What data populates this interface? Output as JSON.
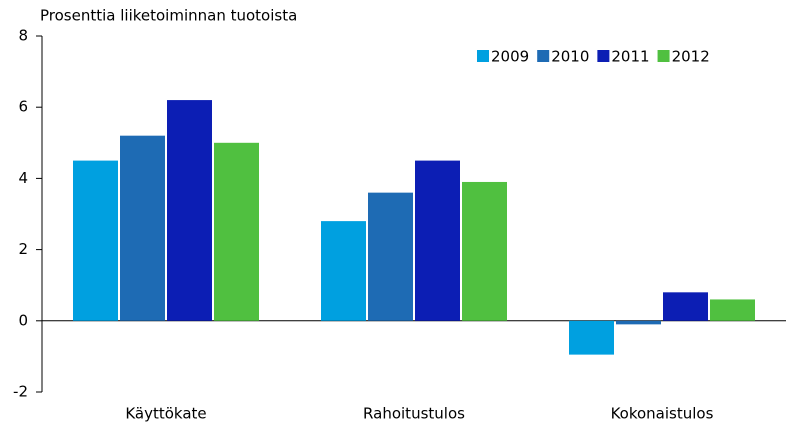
{
  "chart_data": {
    "type": "bar",
    "y_label": "Prosenttia liiketoiminnan tuotoista",
    "categories": [
      "Käyttökate",
      "Rahoitustulos",
      "Kokonaistulos"
    ],
    "series": [
      {
        "name": "2009",
        "color": "#00a0e0",
        "values": [
          4.5,
          2.8,
          -0.95
        ]
      },
      {
        "name": "2010",
        "color": "#1e6bb4",
        "values": [
          5.2,
          3.6,
          -0.1
        ]
      },
      {
        "name": "2011",
        "color": "#0c1eb4",
        "values": [
          6.2,
          4.5,
          0.8
        ]
      },
      {
        "name": "2012",
        "color": "#50c040",
        "values": [
          5.0,
          3.9,
          0.6
        ]
      }
    ],
    "ylim": [
      -2,
      8
    ],
    "yticks": [
      -2,
      0,
      2,
      4,
      6,
      8
    ],
    "legend": "upper right"
  }
}
